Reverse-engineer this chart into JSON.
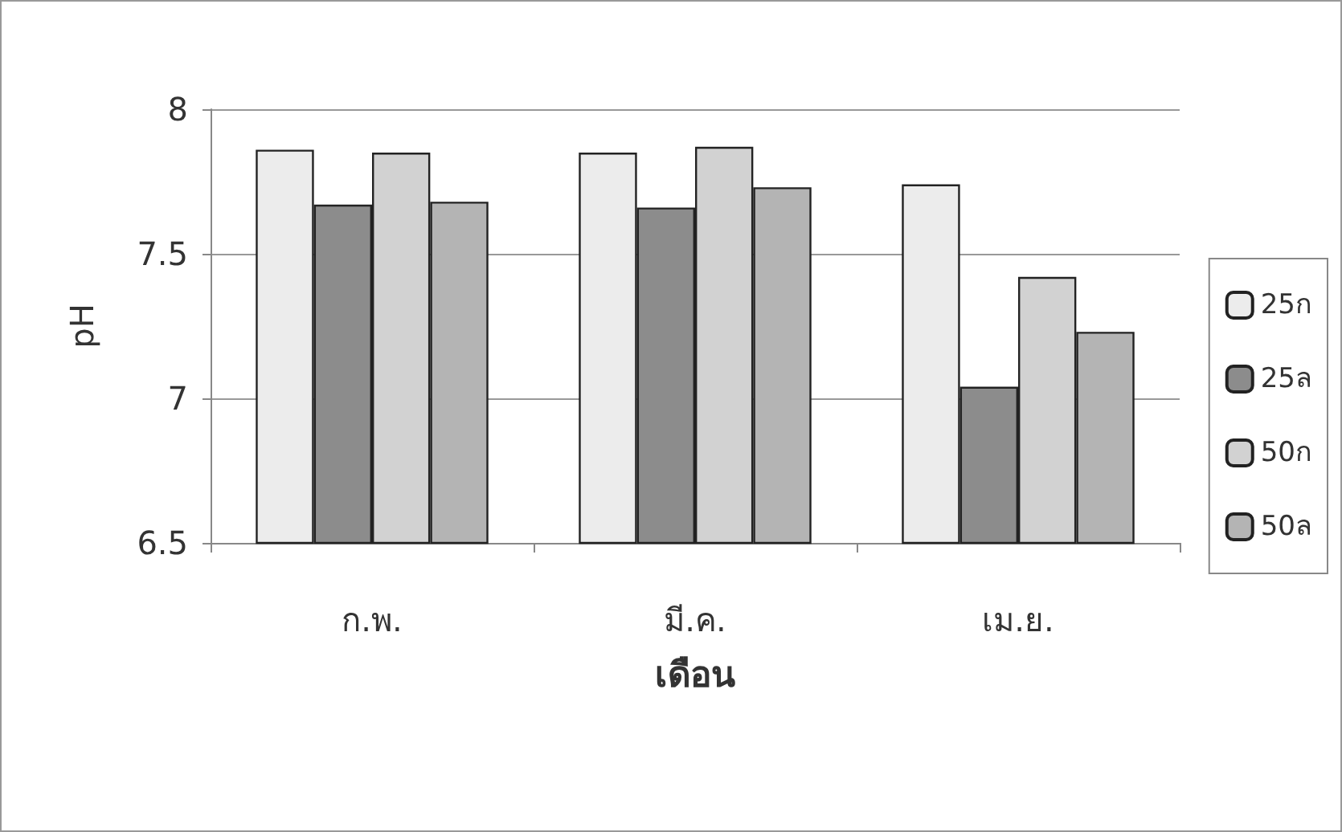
{
  "chart_data": {
    "type": "bar",
    "xlabel": "เดือน",
    "ylabel": "pH",
    "categories": [
      "ก.พ.",
      "มี.ค.",
      "เม.ย."
    ],
    "series": [
      {
        "name": "25ก",
        "color": "#ececec",
        "values": [
          7.86,
          7.85,
          7.74
        ]
      },
      {
        "name": "25ล",
        "color": "#8c8c8c",
        "values": [
          7.67,
          7.66,
          7.04
        ]
      },
      {
        "name": "50ก",
        "color": "#d2d2d2",
        "values": [
          7.85,
          7.87,
          7.42
        ]
      },
      {
        "name": "50ล",
        "color": "#b4b4b4",
        "values": [
          7.68,
          7.73,
          7.23
        ]
      }
    ],
    "ylim": [
      6.5,
      8
    ],
    "yticks": [
      6.5,
      7,
      7.5,
      8
    ],
    "grid": "y",
    "legend": "right"
  }
}
